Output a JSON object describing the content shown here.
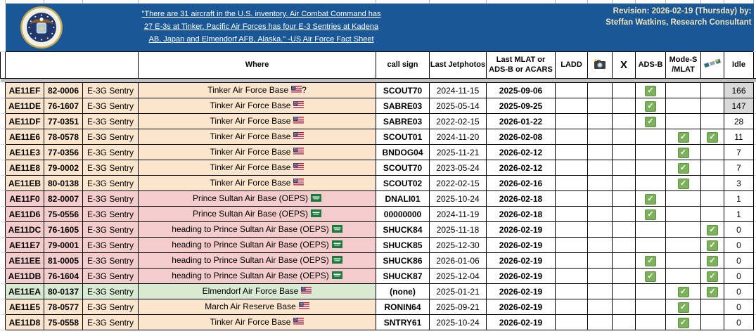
{
  "banner": {
    "seal_icon": "us-air-force-seal",
    "quote_link": "\"There are 31 aircraft in the U.S. inventory. Air Combat Command has 27 E-3s at Tinker. Pacific Air Forces has four E-3 Sentries at Kadena AB, Japan and Elmendorf AFB, Alaska.\" -US Air Force Fact Sheet",
    "revision_line1": "Revision: 2026-02-19 (Thursday) by:",
    "revision_line2": "Steffan Watkins, Research Consultant"
  },
  "colors": {
    "banner_blue": "#1a5796",
    "revision_text": "#f0e6bc",
    "row_peach": "#fce5cd",
    "row_pink": "#f4cccc",
    "row_green": "#d9ead3",
    "idle_highlight": "#d9d9d9",
    "check_green": "#7db15c"
  },
  "table": {
    "headers": {
      "where": "Where",
      "call_sign": "call sign",
      "last_jetphotos": "Last Jetphotos",
      "last_mlat": "Last MLAT or ADS-B or ACARS",
      "ladd": "LADD",
      "camera_icon": "camera-flash-icon",
      "x_label": "X",
      "adsb": "ADS-B",
      "mode_s": "Mode-S /MLAT",
      "satellite_icon": "satellite-icon",
      "idle": "Idle"
    },
    "rows": [
      {
        "hex": "AE11EF",
        "serial": "82-0006",
        "type": "E-3G Sentry",
        "where": "Tinker Air Force Base",
        "flag": "us",
        "where_suffix": "?",
        "tone": "peach",
        "call_sign": "SCOUT70",
        "last_jetphotos": "2024-11-15",
        "last_mlat": "2025-09-06",
        "adsb": true,
        "mode_s": false,
        "satellite": false,
        "idle": "166",
        "idle_gray": true
      },
      {
        "hex": "AE11DE",
        "serial": "76-1607",
        "type": "E-3G Sentry",
        "where": "Tinker Air Force Base",
        "flag": "us",
        "where_suffix": "",
        "tone": "peach",
        "call_sign": "SABRE03",
        "last_jetphotos": "2025-05-14",
        "last_mlat": "2025-09-25",
        "adsb": true,
        "mode_s": false,
        "satellite": false,
        "idle": "147",
        "idle_gray": true
      },
      {
        "hex": "AE11DF",
        "serial": "77-0351",
        "type": "E-3G Sentry",
        "where": "Tinker Air Force Base",
        "flag": "us",
        "where_suffix": "",
        "tone": "peach",
        "call_sign": "SABRE03",
        "last_jetphotos": "2022-02-15",
        "last_mlat": "2026-01-22",
        "adsb": true,
        "mode_s": false,
        "satellite": false,
        "idle": "28",
        "idle_gray": false
      },
      {
        "hex": "AE11E6",
        "serial": "78-0578",
        "type": "E-3G Sentry",
        "where": "Tinker Air Force Base",
        "flag": "us",
        "where_suffix": "",
        "tone": "peach",
        "call_sign": "SCOUT01",
        "last_jetphotos": "2024-11-20",
        "last_mlat": "2026-02-08",
        "adsb": false,
        "mode_s": true,
        "satellite": true,
        "idle": "11",
        "idle_gray": false
      },
      {
        "hex": "AE11E3",
        "serial": "77-0356",
        "type": "E-3G Sentry",
        "where": "Tinker Air Force Base",
        "flag": "us",
        "where_suffix": "",
        "tone": "peach",
        "call_sign": "BNDOG04",
        "last_jetphotos": "2025-11-21",
        "last_mlat": "2026-02-12",
        "adsb": false,
        "mode_s": true,
        "satellite": false,
        "idle": "7",
        "idle_gray": false
      },
      {
        "hex": "AE11E8",
        "serial": "79-0002",
        "type": "E-3G Sentry",
        "where": "Tinker Air Force Base",
        "flag": "us",
        "where_suffix": "",
        "tone": "peach",
        "call_sign": "SCOUT70",
        "last_jetphotos": "2023-05-24",
        "last_mlat": "2026-02-12",
        "adsb": false,
        "mode_s": true,
        "satellite": false,
        "idle": "7",
        "idle_gray": false
      },
      {
        "hex": "AE11EB",
        "serial": "80-0138",
        "type": "E-3G Sentry",
        "where": "Tinker Air Force Base",
        "flag": "us",
        "where_suffix": "",
        "tone": "peach",
        "call_sign": "SCOUT02",
        "last_jetphotos": "2022-02-15",
        "last_mlat": "2026-02-16",
        "adsb": false,
        "mode_s": true,
        "satellite": false,
        "idle": "3",
        "idle_gray": false
      },
      {
        "hex": "AE11F0",
        "serial": "82-0007",
        "type": "E-3G Sentry",
        "where": "Prince Sultan Air Base (OEPS)",
        "flag": "sa",
        "where_suffix": "",
        "tone": "pink",
        "call_sign": "DNALI01",
        "last_jetphotos": "2025-10-24",
        "last_mlat": "2026-02-18",
        "adsb": true,
        "mode_s": false,
        "satellite": false,
        "idle": "1",
        "idle_gray": false
      },
      {
        "hex": "AE11D6",
        "serial": "75-0556",
        "type": "E-3G Sentry",
        "where": "Prince Sultan Air Base (OEPS)",
        "flag": "sa",
        "where_suffix": "",
        "tone": "pink",
        "call_sign": "00000000",
        "last_jetphotos": "2024-11-19",
        "last_mlat": "2026-02-18",
        "adsb": true,
        "mode_s": false,
        "satellite": false,
        "idle": "1",
        "idle_gray": false
      },
      {
        "hex": "AE11DC",
        "serial": "76-1605",
        "type": "E-3G Sentry",
        "where": "heading to Prince Sultan Air Base (OEPS)",
        "flag": "sa",
        "where_suffix": "",
        "tone": "pink",
        "call_sign": "SHUCK84",
        "last_jetphotos": "2025-11-18",
        "last_mlat": "2026-02-19",
        "adsb": false,
        "mode_s": false,
        "satellite": true,
        "idle": "0",
        "idle_gray": false
      },
      {
        "hex": "AE11E7",
        "serial": "79-0001",
        "type": "E-3G Sentry",
        "where": "heading to Prince Sultan Air Base (OEPS)",
        "flag": "sa",
        "where_suffix": "",
        "tone": "pink",
        "call_sign": "SHUCK85",
        "last_jetphotos": "2025-12-30",
        "last_mlat": "2026-02-19",
        "adsb": false,
        "mode_s": false,
        "satellite": true,
        "idle": "0",
        "idle_gray": false
      },
      {
        "hex": "AE11EE",
        "serial": "81-0005",
        "type": "E-3G Sentry",
        "where": "heading to Prince Sultan Air Base (OEPS)",
        "flag": "sa",
        "where_suffix": "",
        "tone": "pink",
        "call_sign": "SHUCK86",
        "last_jetphotos": "2026-01-06",
        "last_mlat": "2026-02-19",
        "adsb": true,
        "mode_s": false,
        "satellite": true,
        "idle": "0",
        "idle_gray": false
      },
      {
        "hex": "AE11DB",
        "serial": "76-1604",
        "type": "E-3G Sentry",
        "where": "heading to Prince Sultan Air Base (OEPS)",
        "flag": "sa",
        "where_suffix": "",
        "tone": "pink",
        "call_sign": "SHUCK87",
        "last_jetphotos": "2025-12-04",
        "last_mlat": "2026-02-19",
        "adsb": true,
        "mode_s": false,
        "satellite": true,
        "idle": "0",
        "idle_gray": false
      },
      {
        "hex": "AE11EA",
        "serial": "80-0137",
        "type": "E-3G Sentry",
        "where": "Elmendorf Air Force Base",
        "flag": "us",
        "where_suffix": "",
        "tone": "green",
        "call_sign": "(none)",
        "last_jetphotos": "2025-01-21",
        "last_mlat": "2026-02-19",
        "adsb": false,
        "mode_s": true,
        "satellite": true,
        "idle": "0",
        "idle_gray": false
      },
      {
        "hex": "AE11E5",
        "serial": "78-0577",
        "type": "E-3G Sentry",
        "where": "March Air Reserve Base",
        "flag": "us",
        "where_suffix": "",
        "tone": "peach",
        "call_sign": "RONIN64",
        "last_jetphotos": "2025-09-21",
        "last_mlat": "2026-02-19",
        "adsb": false,
        "mode_s": true,
        "satellite": false,
        "idle": "0",
        "idle_gray": false
      },
      {
        "hex": "AE11D8",
        "serial": "75-0558",
        "type": "E-3G Sentry",
        "where": "Tinker Air Force Base",
        "flag": "us",
        "where_suffix": "",
        "tone": "peach",
        "call_sign": "SNTRY61",
        "last_jetphotos": "2025-10-24",
        "last_mlat": "2026-02-19",
        "adsb": false,
        "mode_s": true,
        "satellite": false,
        "idle": "0",
        "idle_gray": false
      }
    ]
  }
}
